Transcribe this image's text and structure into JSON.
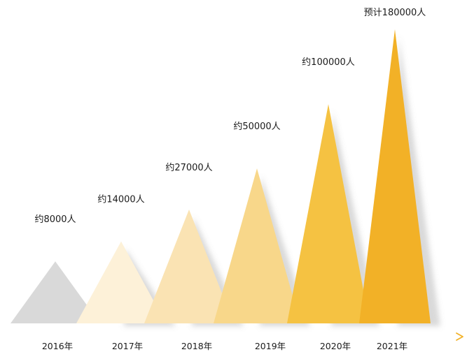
{
  "chart_data": {
    "type": "bar",
    "title": "",
    "xlabel": "",
    "ylabel": "",
    "categories": [
      "2016年",
      "2017年",
      "2018年",
      "2019年",
      "2020年",
      "2021年"
    ],
    "values": [
      8000,
      14000,
      27000,
      50000,
      100000,
      180000
    ],
    "data_labels": [
      "约8000人",
      "约14000人",
      "约27000人",
      "约50000人",
      "约100000人",
      "预计180000人"
    ],
    "colors": [
      "#d9d9d9",
      "#fdf1d8",
      "#fae3b3",
      "#f8d78a",
      "#f5c242",
      "#f2b127"
    ],
    "axis_color": "#f2b127",
    "grid": false,
    "legend": "none"
  }
}
